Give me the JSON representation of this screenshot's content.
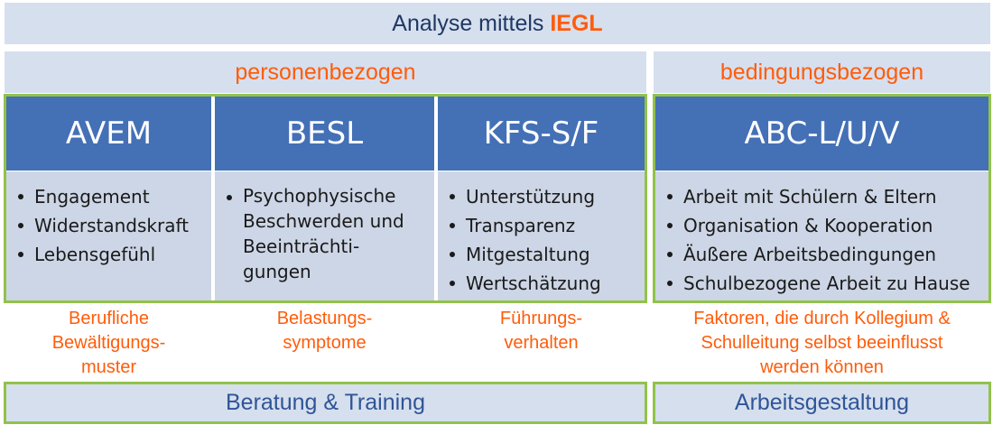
{
  "title": {
    "prefix": "Analyse mittels",
    "accent": "IEGL"
  },
  "headers": {
    "person": "personenbezogen",
    "condition": "bedingungsbezogen"
  },
  "columns": [
    {
      "name": "AVEM",
      "items": [
        "Engagement",
        "Widerstandskraft",
        "Lebensgefühl"
      ],
      "description": [
        "Berufliche",
        "Bewältigungs-",
        "muster"
      ]
    },
    {
      "name": "BESL",
      "items": [
        "Psychophysische Beschwerden und Beeinträchti-gungen"
      ],
      "description": [
        "Belastungs-",
        "symptome"
      ]
    },
    {
      "name": "KFS-S/F",
      "items": [
        "Unterstützung",
        "Transparenz",
        "Mitgestaltung",
        "Wertschätzung"
      ],
      "description": [
        "Führungs-",
        "verhalten"
      ]
    },
    {
      "name": "ABC-L/U/V",
      "items": [
        "Arbeit mit Schülern & Eltern",
        "Organisation & Kooperation",
        "Äußere Arbeitsbedingungen",
        "Schulbezogene Arbeit zu Hause"
      ],
      "description": [
        "Faktoren, die durch Kollegium &",
        "Schulleitung selbst beeinflusst",
        "werden können"
      ]
    }
  ],
  "footers": {
    "left": "Beratung & Training",
    "right": "Arbeitsgestaltung"
  },
  "colors": {
    "header_blue": "#4470b6",
    "body_blue": "#cdd6e6",
    "bar_blue": "#d6dfee",
    "accent_orange": "#ff5c0a",
    "frame_green": "#92c24a",
    "title_navy": "#1f3864"
  }
}
